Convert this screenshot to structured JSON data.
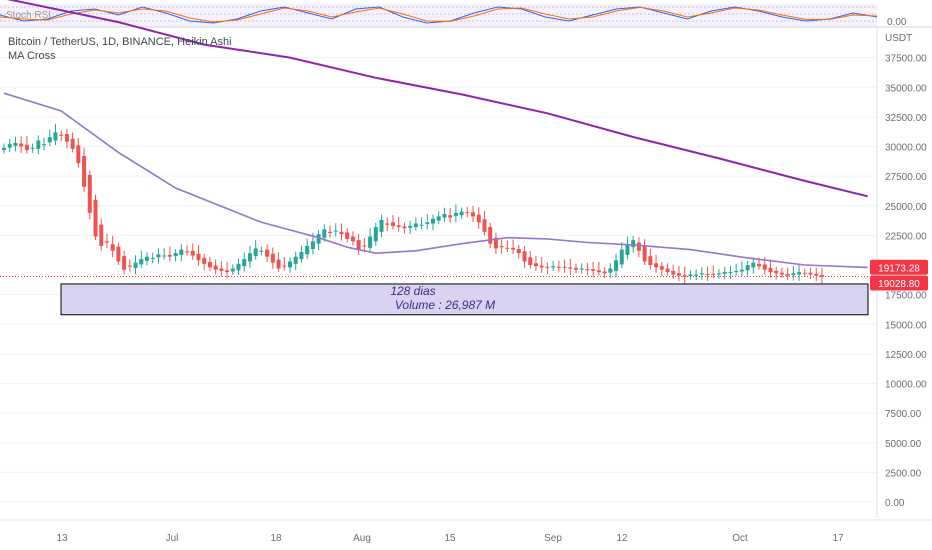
{
  "legend": {
    "symbol_line": "Bitcoin / TetherUS, 1D, BINANCE, Heikin Ashi",
    "indicator": "MA Cross"
  },
  "osc_label": "0.00",
  "osc_badge": "Stoch RSI",
  "colors": {
    "up": "#26a69a",
    "down": "#ef5350",
    "ma_fast": "#9575cd",
    "ma_slow": "#8e24aa",
    "box_fill": "#d9d2f0",
    "box_border": "#000000",
    "price_tag": "#f23645",
    "stoch_k": "#2962ff",
    "stoch_d": "#ff6d00"
  },
  "chart_data": {
    "type": "candlestick",
    "currency": "USDT",
    "y_ticks": [
      37500,
      35000,
      32500,
      30000,
      27500,
      25000,
      22500,
      17500,
      15000,
      12500,
      10000,
      7500,
      5000,
      2500,
      0
    ],
    "y_tick_labels": [
      "37500.00",
      "35000.00",
      "32500.00",
      "30000.00",
      "27500.00",
      "25000.00",
      "22500.00",
      "17500.00",
      "15000.00",
      "12500.00",
      "10000.00",
      "7500.00",
      "5000.00",
      "2500.00",
      "0.00"
    ],
    "x_labels": [
      "13",
      "Jul",
      "18",
      "Aug",
      "15",
      "Sep",
      "12",
      "Oct",
      "17"
    ],
    "price_tags": [
      {
        "label": "19173.28",
        "value": 19173.28
      },
      {
        "label": "19028.80",
        "value": 19028.8
      }
    ],
    "annotation": {
      "line1": "128 dias",
      "line2": "Volume : 26,987 M",
      "price_top": 18400,
      "price_bottom": 15800
    },
    "series": [
      {
        "name": "Heikin Ashi close",
        "values": [
          29900,
          30200,
          30300,
          30000,
          29700,
          29900,
          30500,
          30200,
          30800,
          31200,
          30900,
          30400,
          29800,
          28600,
          26600,
          24400,
          22400,
          21600,
          21900,
          21200,
          20300,
          19600,
          19900,
          20200,
          20500,
          20700,
          20600,
          20900,
          20800,
          20700,
          21000,
          21300,
          21100,
          20800,
          20400,
          20100,
          19800,
          19600,
          19500,
          19400,
          19700,
          20100,
          20500,
          21000,
          21400,
          21200,
          20700,
          20200,
          19700,
          19900,
          20300,
          20700,
          21100,
          21600,
          22000,
          22600,
          23000,
          22700,
          22900,
          22600,
          22200,
          22000,
          21300,
          21600,
          22400,
          23200,
          23800,
          23400,
          23300,
          23200,
          23100,
          23300,
          23500,
          23400,
          23600,
          23900,
          24100,
          24300,
          24000,
          24400,
          24500,
          24400,
          24100,
          23600,
          22800,
          21800,
          21400,
          21500,
          21400,
          21300,
          21000,
          20300,
          20000,
          19900,
          19800,
          19800,
          19900,
          19800,
          19800,
          19700,
          19600,
          19700,
          19600,
          19500,
          19400,
          19300,
          19700,
          20400,
          21300,
          21700,
          22100,
          21200,
          20300,
          20000,
          19800,
          19600,
          19400,
          19200,
          19100,
          19000,
          19200,
          19200,
          19300,
          19200,
          19200,
          19300,
          19400,
          19400,
          19500,
          19600,
          20000,
          20200,
          19900,
          19600,
          19400,
          19300,
          19200,
          19100,
          19300,
          19400,
          19300,
          19200,
          19100,
          19000
        ]
      },
      {
        "name": "MA fast",
        "values": []
      },
      {
        "name": "MA slow",
        "values": []
      }
    ],
    "ma_fast_points": [
      [
        0,
        34500
      ],
      [
        10,
        33000
      ],
      [
        20,
        29500
      ],
      [
        30,
        26500
      ],
      [
        45,
        23600
      ],
      [
        55,
        22300
      ],
      [
        60,
        21500
      ],
      [
        65,
        21000
      ],
      [
        72,
        21200
      ],
      [
        80,
        21800
      ],
      [
        88,
        22300
      ],
      [
        95,
        22200
      ],
      [
        102,
        21900
      ],
      [
        110,
        21700
      ],
      [
        120,
        21300
      ],
      [
        130,
        20600
      ],
      [
        140,
        20000
      ],
      [
        151,
        19800
      ]
    ],
    "ma_slow_points": [
      [
        0,
        42500
      ],
      [
        20,
        40500
      ],
      [
        35,
        38600
      ],
      [
        50,
        37500
      ],
      [
        65,
        35800
      ],
      [
        80,
        34400
      ],
      [
        95,
        32800
      ],
      [
        110,
        30800
      ],
      [
        125,
        29000
      ],
      [
        140,
        27100
      ],
      [
        151,
        25800
      ]
    ],
    "stoch_k": [
      50,
      20,
      30,
      70,
      80,
      50,
      90,
      60,
      20,
      10,
      30,
      70,
      90,
      60,
      30,
      80,
      90,
      40,
      10,
      20,
      60,
      90,
      80,
      40,
      20,
      50,
      80,
      90,
      60,
      30,
      70,
      90,
      70,
      40,
      20,
      30,
      60,
      40
    ],
    "stoch_d": [
      40,
      30,
      25,
      55,
      75,
      60,
      80,
      70,
      35,
      15,
      25,
      55,
      85,
      70,
      40,
      65,
      85,
      55,
      20,
      18,
      45,
      80,
      85,
      55,
      30,
      40,
      70,
      88,
      70,
      40,
      60,
      85,
      75,
      50,
      28,
      28,
      50,
      45
    ]
  }
}
